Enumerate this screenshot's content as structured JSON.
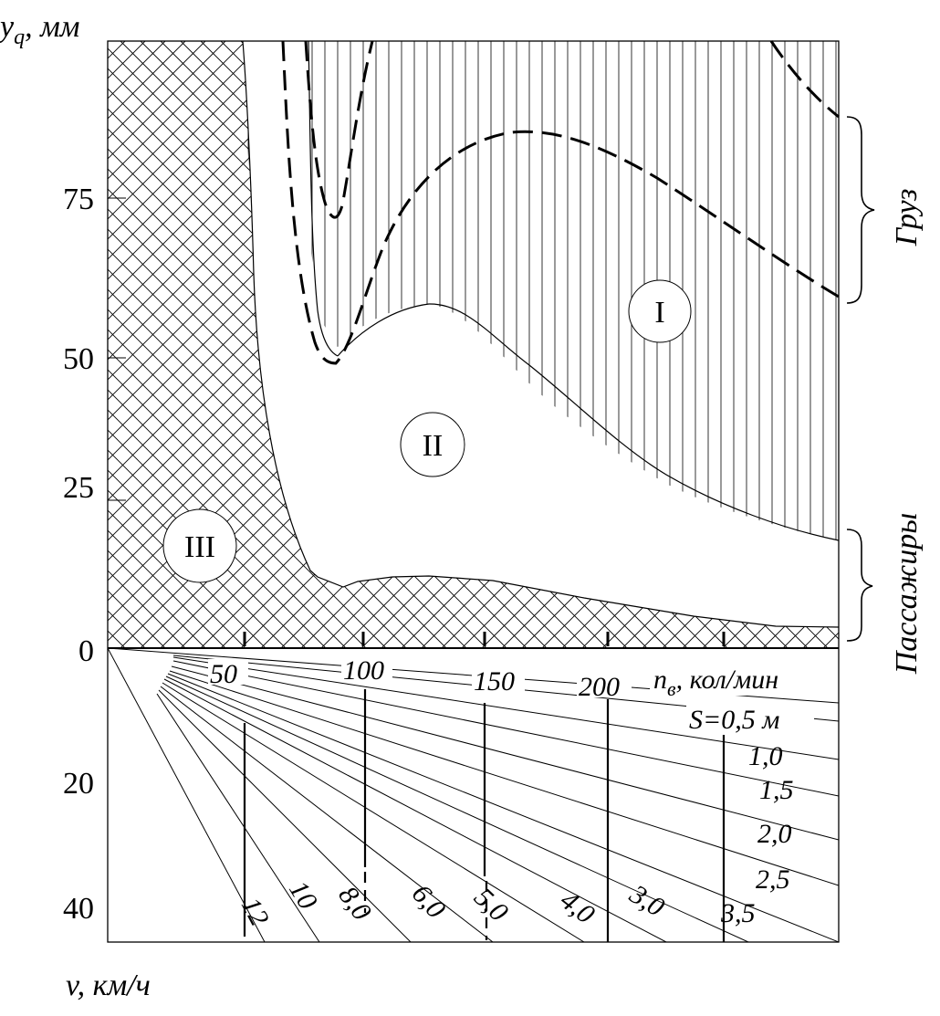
{
  "chart_data": {
    "type": "nomogram",
    "upper_panel": {
      "y_axis_label": "y",
      "y_axis_label_sub": "q",
      "y_axis_unit": ", мм",
      "y_ticks": [
        "0",
        "25",
        "50",
        "75"
      ],
      "y_tick_values": [
        0,
        25,
        50,
        75
      ],
      "ylim": [
        0,
        95
      ],
      "regions": [
        {
          "label": "I",
          "fill": "vertical-lines"
        },
        {
          "label": "II",
          "fill": "none"
        },
        {
          "label": "III",
          "fill": "cross-hatch"
        }
      ],
      "braces": [
        {
          "label": "Груз",
          "y_range": [
            58,
            87
          ]
        },
        {
          "label": "Пассажиры",
          "y_range": [
            1,
            18
          ]
        }
      ],
      "marker_speeds": [
        50,
        100,
        150,
        200,
        250
      ]
    },
    "lower_panel": {
      "y_ticks": [
        "20",
        "40"
      ],
      "y_tick_values": [
        20,
        40
      ],
      "n_label": "n",
      "n_label_sub": "в",
      "n_label_unit": ", кол/мин",
      "n_labels": [
        "50",
        "100",
        "150",
        "200"
      ],
      "n_values": [
        50,
        100,
        150,
        200
      ],
      "s_labels": [
        "S=0,5 м",
        "1,0",
        "1,5",
        "2,0",
        "2,5",
        "3,0",
        "3,5",
        "4,0",
        "5,0",
        "6,0",
        "8,0",
        "10",
        "12"
      ],
      "s_values": [
        0.5,
        1.0,
        1.5,
        2.0,
        2.5,
        3.0,
        3.5,
        4.0,
        5.0,
        6.0,
        8.0,
        10,
        12
      ]
    },
    "x_axis_label": "v, км/ч"
  }
}
